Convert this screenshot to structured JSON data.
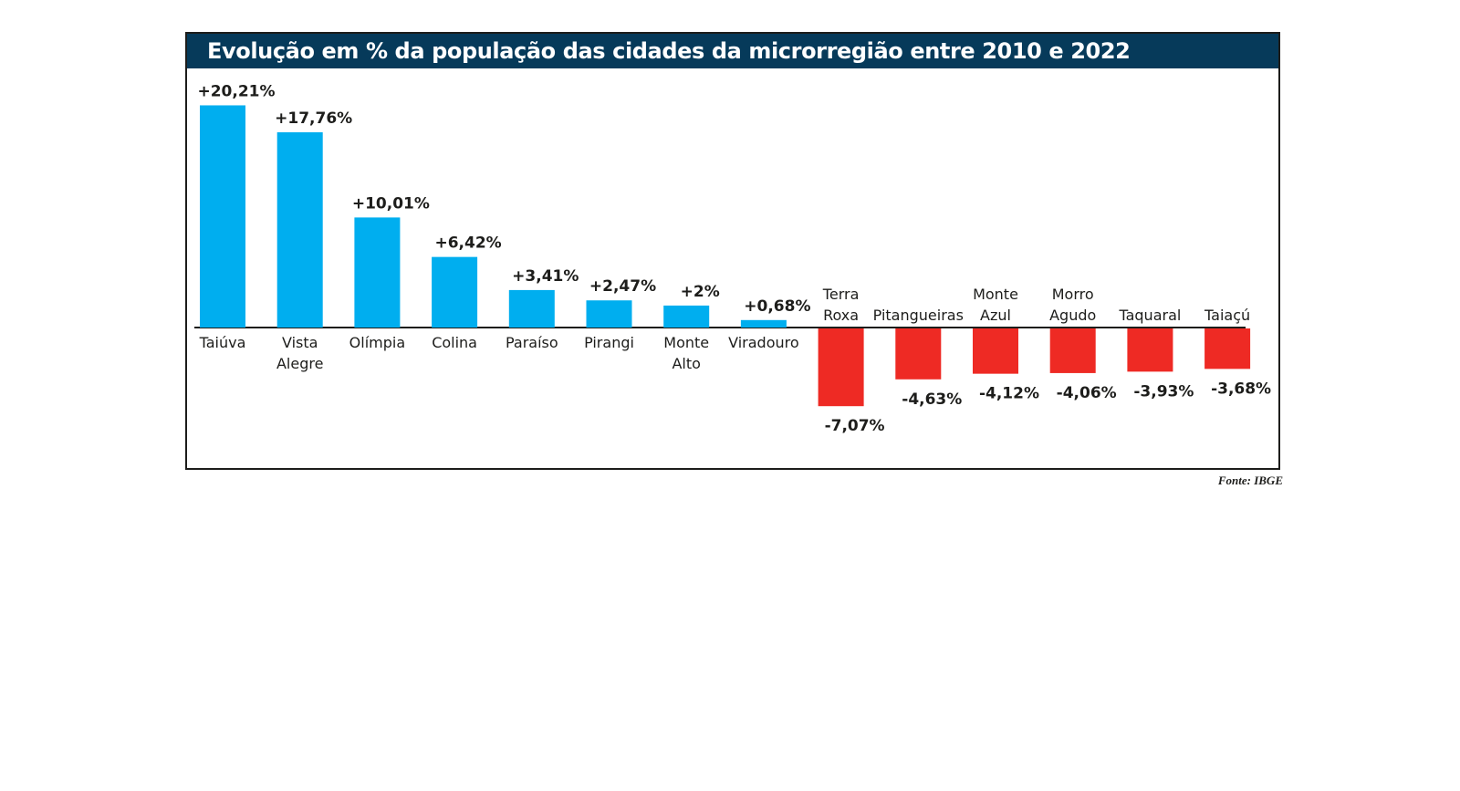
{
  "chart_data": {
    "type": "bar",
    "title": "Evolução em % da população das cidades da microrregião entre 2010 e 2022",
    "xlabel": "",
    "ylabel": "",
    "ylim": [
      -8,
      22
    ],
    "grid": false,
    "legend": "none",
    "categories": [
      "Taiúva",
      "Vista Alegre",
      "Olímpia",
      "Colina",
      "Paraíso",
      "Pirangi",
      "Monte Alto",
      "Viradouro",
      "Terra Roxa",
      "Pitangueiras",
      "Monte Azul",
      "Morro Agudo",
      "Taquaral",
      "Taiaçú"
    ],
    "category_lines": [
      [
        "Taiúva"
      ],
      [
        "Vista",
        "Alegre"
      ],
      [
        "Olímpia"
      ],
      [
        "Colina"
      ],
      [
        "Paraíso"
      ],
      [
        "Pirangi"
      ],
      [
        "Monte",
        "Alto"
      ],
      [
        "Viradouro"
      ],
      [
        "Terra",
        "Roxa"
      ],
      [
        "Pitangueiras"
      ],
      [
        "Monte",
        "Azul"
      ],
      [
        "Morro",
        "Agudo"
      ],
      [
        "Taquaral"
      ],
      [
        "Taiaçú"
      ]
    ],
    "values": [
      20.21,
      17.76,
      10.01,
      6.42,
      3.41,
      2.47,
      2,
      0.68,
      -7.07,
      -4.63,
      -4.12,
      -4.06,
      -3.93,
      -3.68
    ],
    "value_labels": [
      "+20,21%",
      "+17,76%",
      "+10,01%",
      "+6,42%",
      "+3,41%",
      "+2,47%",
      "+2%",
      "+0,68%",
      "-7,07%",
      "-4,63%",
      "-4,12%",
      "-4,06%",
      "-3,93%",
      "-3,68%"
    ],
    "colors": {
      "positive": "#00aeef",
      "negative": "#ee2a24",
      "title_bar": "#063a5a",
      "axis": "#1d1d1b"
    }
  },
  "source": "Fonte: IBGE"
}
